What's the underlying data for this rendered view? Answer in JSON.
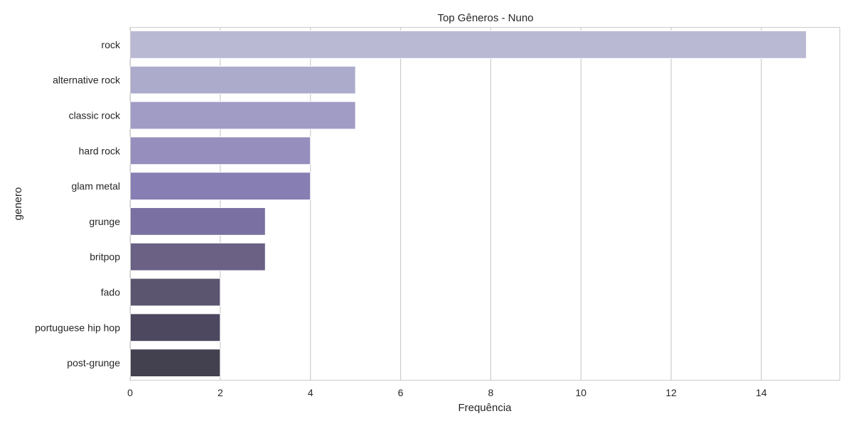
{
  "chart_data": {
    "type": "bar",
    "orientation": "horizontal",
    "title": "Top Gêneros - Nuno",
    "xlabel": "Frequência",
    "ylabel": "genero",
    "categories": [
      "rock",
      "alternative rock",
      "classic rock",
      "hard rock",
      "glam metal",
      "grunge",
      "britpop",
      "fado",
      "portuguese hip hop",
      "post-grunge"
    ],
    "values": [
      15,
      5,
      5,
      4,
      4,
      3,
      3,
      2,
      2,
      2
    ],
    "xlim": [
      0,
      15.75
    ],
    "xticks": [
      0,
      2,
      4,
      6,
      8,
      10,
      12,
      14
    ],
    "grid": true,
    "bar_colors": [
      "#b9b9d4",
      "#adabcc",
      "#a19cc6",
      "#968ebd",
      "#877eb3",
      "#7a70a1",
      "#6a6185",
      "#5b556f",
      "#4d4860",
      "#434050"
    ],
    "grid_color": "#cccccc",
    "frame_color": "#cccccc",
    "text_color": "#262626"
  }
}
